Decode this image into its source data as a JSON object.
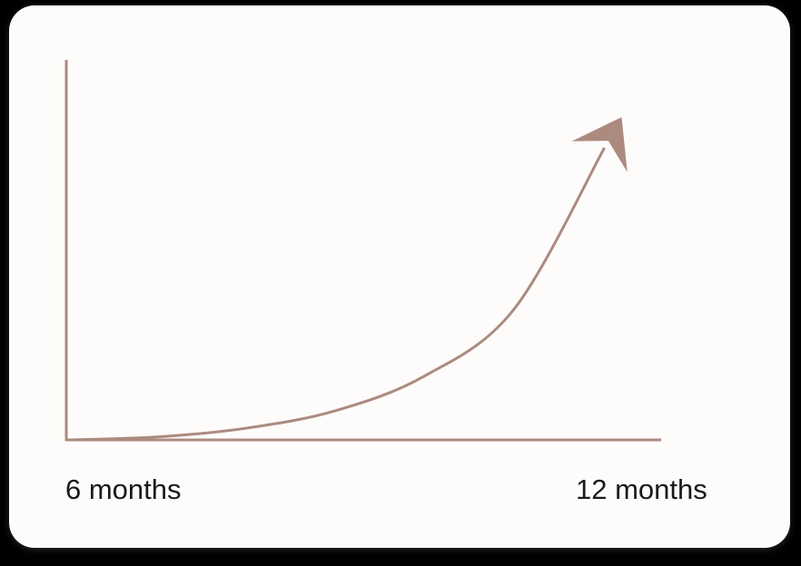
{
  "chart_data": {
    "type": "line",
    "title": "",
    "xlabel": "",
    "ylabel": "",
    "x_tick_labels": [
      "6 months",
      "12 months"
    ],
    "x": [
      6,
      7,
      8,
      9,
      10,
      11,
      12
    ],
    "series": [
      {
        "values": [
          0,
          0.01,
          0.04,
          0.1,
          0.22,
          0.45,
          1.0
        ]
      }
    ],
    "xlim": [
      6,
      12
    ],
    "ylim": [
      0,
      1.0
    ],
    "grid": false,
    "legend": "none",
    "colors": {
      "line": "#ac8a7f",
      "axis": "#ac8a7f",
      "arrowhead": "#ac8a7f"
    }
  }
}
